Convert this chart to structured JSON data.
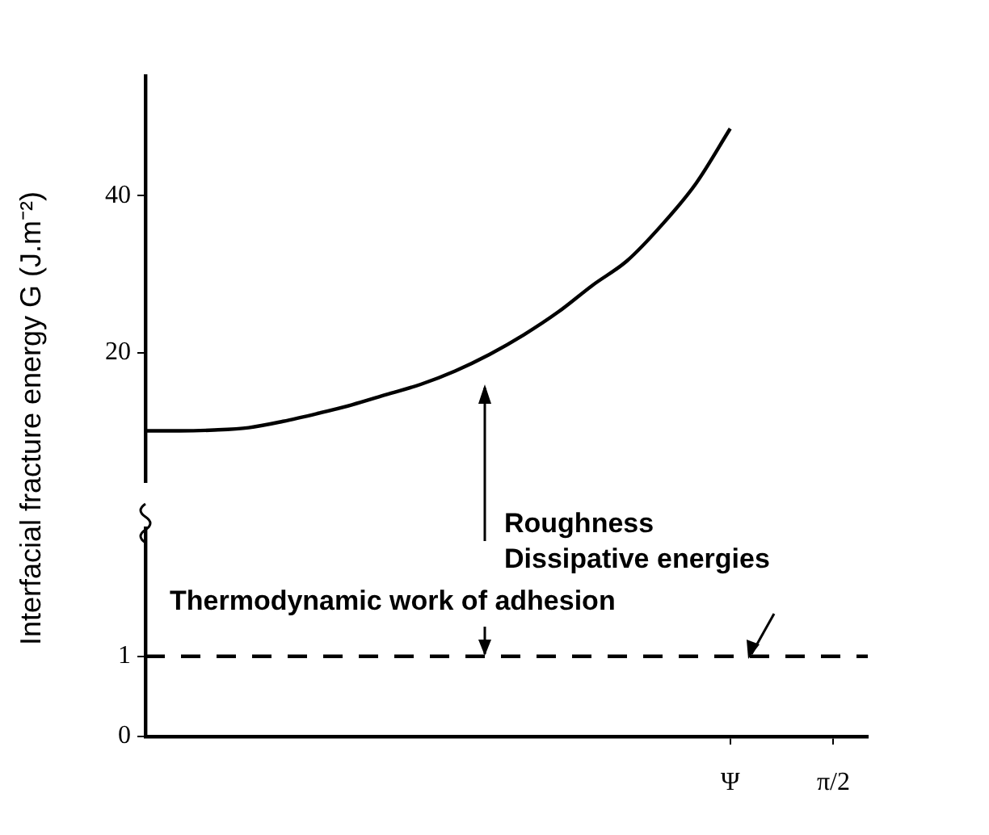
{
  "chart_data": [
    {
      "type": "line",
      "ylabel": "Interfacial fracture energy G (J.m⁻²)",
      "categories": [
        null,
        null,
        null,
        null,
        null,
        null,
        null,
        null,
        null,
        null,
        null,
        null,
        null,
        null,
        null,
        null,
        null,
        null,
        null,
        null,
        null,
        null
      ],
      "ylim": [
        3.6,
        55.2
      ],
      "yticks": [
        20,
        40
      ],
      "tick_labels": "y",
      "series": [
        {
          "type": "line",
          "color": "#000000",
          "line_style": "solid",
          "values": [
            10.1,
            10.1,
            10.2,
            10.5,
            11.3,
            12.3,
            13.4,
            14.7,
            16.0,
            17.7,
            19.8,
            22.3,
            25.2,
            28.6,
            31.7,
            36.2,
            41.5,
            48.5,
            null,
            null,
            null,
            null
          ]
        }
      ],
      "marker": "none",
      "grid": false,
      "legend": false
    },
    {
      "type": "line",
      "categories": [
        null,
        null,
        null,
        null,
        null,
        null,
        null,
        null,
        null,
        null,
        null,
        null,
        null,
        null,
        null,
        null,
        null,
        "Ψ",
        null,
        null,
        "π/2",
        null
      ],
      "ylim": [
        0,
        2.6
      ],
      "yticks": [
        0,
        1
      ],
      "series": [
        {
          "type": "line",
          "color": "#000000",
          "line_style": "dashed",
          "values": [
            1,
            1,
            1,
            1,
            1,
            1,
            1,
            1,
            1,
            1,
            1,
            1,
            1,
            1,
            1,
            1,
            1,
            1,
            1,
            1,
            1,
            1
          ]
        }
      ],
      "annotations": [
        "Roughness",
        "Dissipative energies",
        "Thermodynamic work of adhesion"
      ],
      "marker": "none",
      "grid": false,
      "legend": false
    }
  ]
}
